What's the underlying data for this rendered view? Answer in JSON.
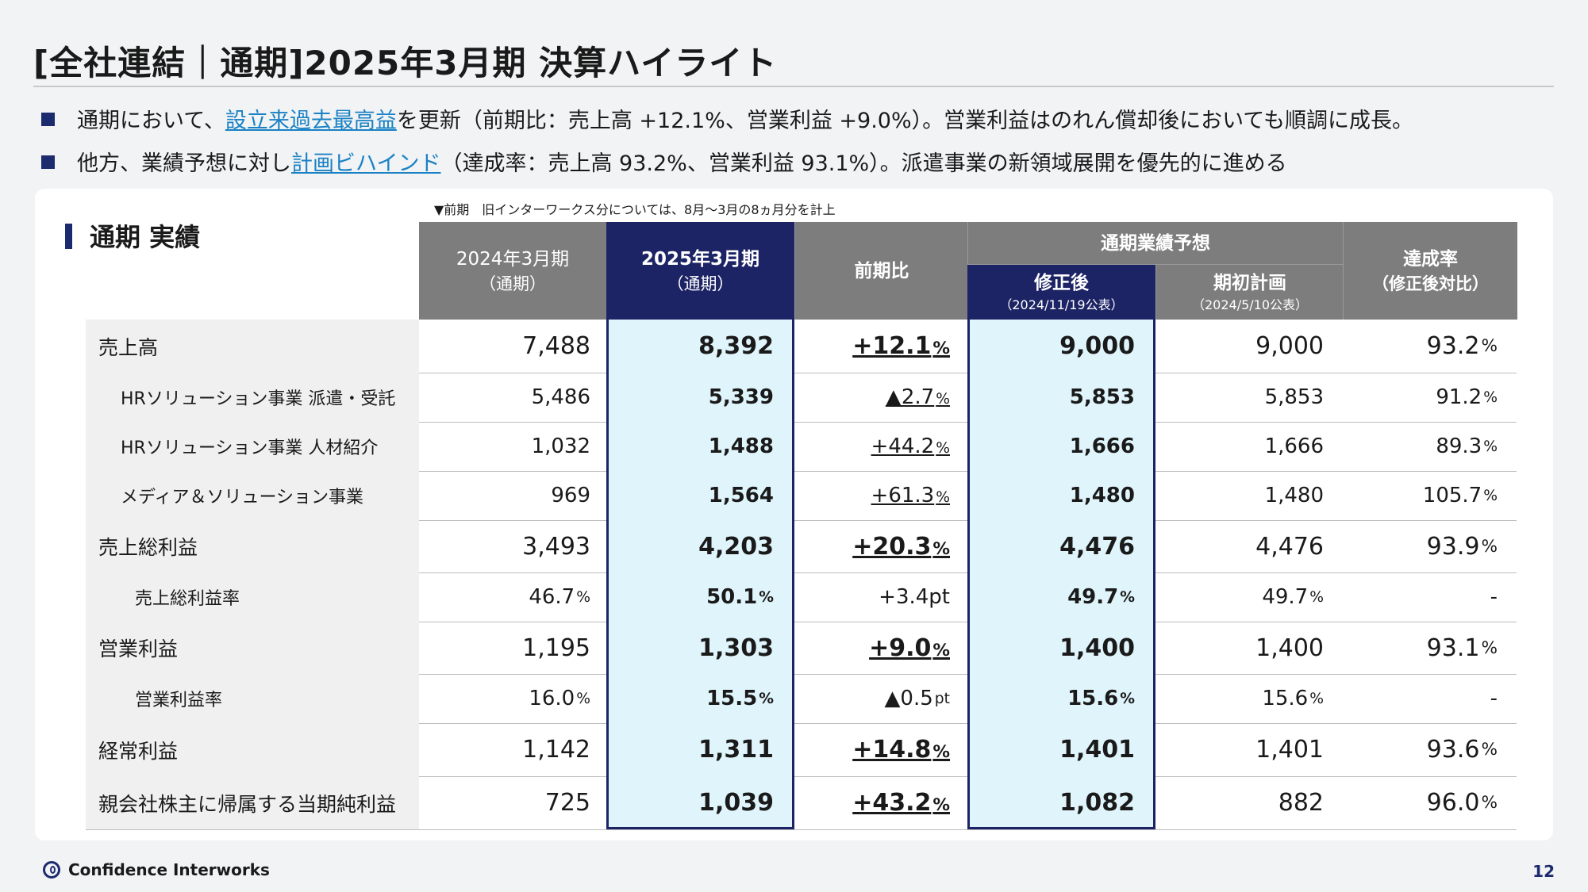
{
  "page": {
    "title": "[全社連結｜通期]2025年3月期 決算ハイライト",
    "bullets": [
      {
        "pre": "通期において、",
        "highlight": "設立来過去最高益",
        "post": "を更新（前期比：売上高 +12.1%、営業利益 +9.0%）。営業利益はのれん償却後においても順調に成長。"
      },
      {
        "pre": "他方、業績予想に対し",
        "highlight": "計画ビハインド",
        "post": "（達成率：売上高 93.2%、営業利益 93.1%）。派遣事業の新領域展開を優先的に進める"
      }
    ],
    "section_title": "通期 実績",
    "note": "▼前期　旧インターワークス分については、8月～3月の8ヵ月分を計上",
    "footer_company": "Confidence Interworks",
    "page_number": "12",
    "colors": {
      "navy": "#1c2465",
      "accent_link": "#1a82c4",
      "header_gray": "#7d7d7d",
      "highlight_col": "#dff4fb"
    }
  },
  "table": {
    "headers": {
      "prev_line1": "2024年3月期",
      "prev_line2": "（通期）",
      "cur_line1": "2025年3月期",
      "cur_line2": "（通期）",
      "yoy": "前期比",
      "forecast_group": "通期業績予想",
      "revised": "修正後",
      "revised_date": "（2024/11/19公表）",
      "initial": "期初計画",
      "initial_date": "（2024/5/10公表）",
      "ach_line1": "達成率",
      "ach_line2": "（修正後対比）"
    },
    "rows": [
      {
        "label": "売上高",
        "prev": "7,488",
        "cur": "8,392",
        "yoy": "+12.1",
        "yoy_unit": "%",
        "rev": "9,000",
        "init": "9,000",
        "ach": "93.2",
        "ach_unit": "%"
      },
      {
        "label": "HRソリューション事業 派遣・受託",
        "prev": "5,486",
        "cur": "5,339",
        "yoy": "▲2.7",
        "yoy_unit": "%",
        "rev": "5,853",
        "init": "5,853",
        "ach": "91.2",
        "ach_unit": "%"
      },
      {
        "label": "HRソリューション事業 人材紹介",
        "prev": "1,032",
        "cur": "1,488",
        "yoy": "+44.2",
        "yoy_unit": "%",
        "rev": "1,666",
        "init": "1,666",
        "ach": "89.3",
        "ach_unit": "%"
      },
      {
        "label": "メディア＆ソリューション事業",
        "prev": "969",
        "cur": "1,564",
        "yoy": "+61.3",
        "yoy_unit": "%",
        "rev": "1,480",
        "init": "1,480",
        "ach": "105.7",
        "ach_unit": "%"
      },
      {
        "label": "売上総利益",
        "prev": "3,493",
        "cur": "4,203",
        "yoy": "+20.3",
        "yoy_unit": "%",
        "rev": "4,476",
        "init": "4,476",
        "ach": "93.9",
        "ach_unit": "%"
      },
      {
        "label": "売上総利益率",
        "prev": "46.7",
        "prev_unit": "%",
        "cur": "50.1",
        "cur_unit": "%",
        "yoy": "+3.4pt",
        "rev": "49.7",
        "rev_unit": "%",
        "init": "49.7",
        "init_unit": "%",
        "ach": "-"
      },
      {
        "label": "営業利益",
        "prev": "1,195",
        "cur": "1,303",
        "yoy": "+9.0",
        "yoy_unit": "%",
        "rev": "1,400",
        "init": "1,400",
        "ach": "93.1",
        "ach_unit": "%"
      },
      {
        "label": "営業利益率",
        "prev": "16.0",
        "prev_unit": "%",
        "cur": "15.5",
        "cur_unit": "%",
        "yoy": "▲0.5",
        "yoy_unit": "pt",
        "rev": "15.6",
        "rev_unit": "%",
        "init": "15.6",
        "init_unit": "%",
        "ach": "-"
      },
      {
        "label": "経常利益",
        "prev": "1,142",
        "cur": "1,311",
        "yoy": "+14.8",
        "yoy_unit": "%",
        "rev": "1,401",
        "init": "1,401",
        "ach": "93.6",
        "ach_unit": "%"
      },
      {
        "label": "親会社株主に帰属する当期純利益",
        "prev": "725",
        "cur": "1,039",
        "yoy": "+43.2",
        "yoy_unit": "%",
        "rev": "1,082",
        "init": "882",
        "ach": "96.0",
        "ach_unit": "%"
      }
    ]
  }
}
